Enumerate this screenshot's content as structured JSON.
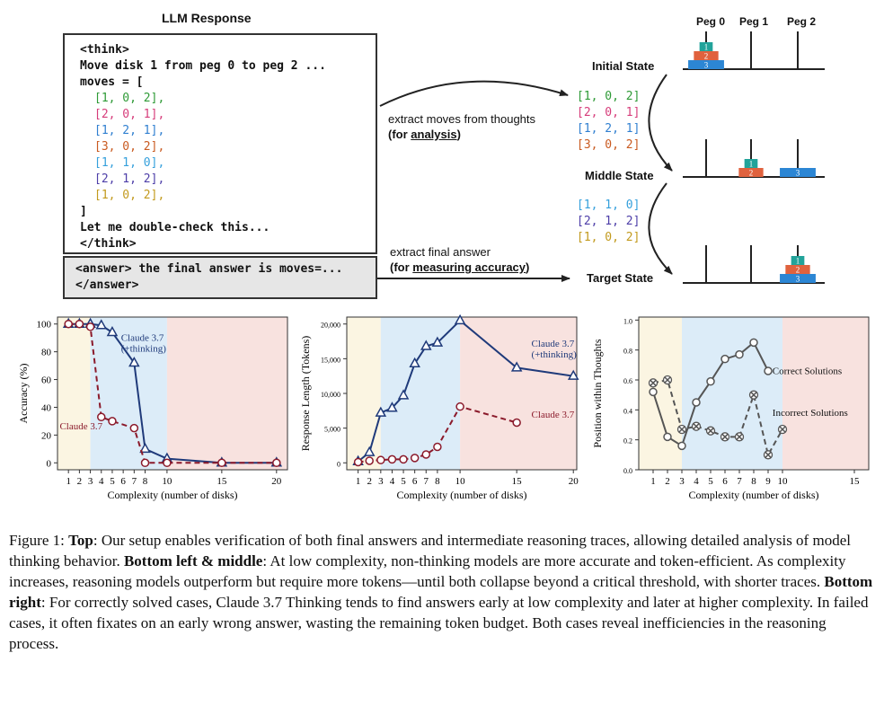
{
  "diagram": {
    "llm_title": "LLM Response",
    "think": {
      "open": "<think>",
      "line1": "Move disk 1 from peg 0 to peg 2 ...",
      "moves_open": "moves = [",
      "moves": [
        {
          "text": "[1, 0, 2],",
          "color": "#2e9a36"
        },
        {
          "text": "[2, 0, 1],",
          "color": "#d63c7a"
        },
        {
          "text": "[1, 2, 1],",
          "color": "#2f7fd0"
        },
        {
          "text": "[3, 0, 2],",
          "color": "#c95a20"
        },
        {
          "text": "[1, 1, 0],",
          "color": "#35a0dc"
        },
        {
          "text": "[2, 1, 2],",
          "color": "#4d3ea8"
        },
        {
          "text": "[1, 0, 2],",
          "color": "#c29a1e"
        }
      ],
      "close_bracket": "]",
      "recheck": "Let me double-check this...",
      "close": "</think>"
    },
    "answer": {
      "line1": "<answer> the final answer is moves=...",
      "line2": "</answer>"
    },
    "extract_moves_label": "extract moves  from thoughts",
    "extract_moves_sub_prefix": "(for ",
    "extract_moves_sub_underlined": "analysis",
    "extract_moves_sub_suffix": ")",
    "extract_final_label": "extract final answer",
    "extract_final_sub_prefix": "(for ",
    "extract_final_sub_underlined": "measuring accuracy",
    "extract_final_sub_suffix": ")",
    "extracted_group1": [
      {
        "text": "[1, 0, 2]",
        "color": "#2e9a36"
      },
      {
        "text": "[2, 0, 1]",
        "color": "#d63c7a"
      },
      {
        "text": "[1, 2, 1]",
        "color": "#2f7fd0"
      },
      {
        "text": "[3, 0, 2]",
        "color": "#c95a20"
      }
    ],
    "extracted_group2": [
      {
        "text": "[1, 1, 0]",
        "color": "#35a0dc"
      },
      {
        "text": "[2, 1, 2]",
        "color": "#4d3ea8"
      },
      {
        "text": "[1, 0, 2]",
        "color": "#c29a1e"
      }
    ],
    "states": [
      "Initial State",
      "Middle State",
      "Target State"
    ],
    "pegs": [
      "Peg 0",
      "Peg 1",
      "Peg 2"
    ],
    "disk_labels": [
      "1",
      "2",
      "3"
    ],
    "disk_colors": {
      "1": "#22a39a",
      "2": "#e0623e",
      "3": "#2c86d4"
    }
  },
  "chart_data": [
    {
      "type": "line",
      "xlabel": "Complexity (number of disks)",
      "ylabel": "Accuracy (%)",
      "xlim": [
        0,
        21
      ],
      "ylim": [
        -5,
        105
      ],
      "xticks": [
        1,
        2,
        3,
        4,
        5,
        6,
        7,
        8,
        10,
        15,
        20
      ],
      "yticks": [
        0,
        20,
        40,
        60,
        80,
        100
      ],
      "regions": [
        {
          "from": 0,
          "to": 3,
          "color": "#fbf5e2"
        },
        {
          "from": 3,
          "to": 10,
          "color": "#dcecf8"
        },
        {
          "from": 10,
          "to": 21,
          "color": "#f8e2df"
        }
      ],
      "series": [
        {
          "name": "Claude 3.7\n(+thinking)",
          "color": "#1f3a7a",
          "marker": "triangle",
          "dashed": false,
          "x": [
            1,
            2,
            3,
            4,
            5,
            7,
            8,
            10,
            15,
            20
          ],
          "y": [
            100,
            100,
            100,
            99,
            94,
            72,
            10,
            3,
            0,
            0
          ]
        },
        {
          "name": "Claude 3.7",
          "color": "#8b1a2b",
          "marker": "circle",
          "dashed": true,
          "x": [
            1,
            2,
            3,
            4,
            5,
            7,
            8,
            10,
            15,
            20
          ],
          "y": [
            100,
            100,
            98,
            33,
            30,
            25,
            0,
            0,
            0,
            0
          ]
        }
      ]
    },
    {
      "type": "line",
      "xlabel": "Complexity (number of disks)",
      "ylabel": "Response Length (Tokens)",
      "xlim": [
        0,
        20.3
      ],
      "ylim": [
        -1000,
        21000
      ],
      "xticks": [
        1,
        2,
        3,
        4,
        5,
        6,
        7,
        8,
        10,
        15,
        20
      ],
      "yticks": [
        0,
        5000,
        10000,
        15000,
        20000
      ],
      "ytick_labels": [
        "0",
        "5,000",
        "10,000",
        "15,000",
        "20,000"
      ],
      "regions": [
        {
          "from": 0,
          "to": 3,
          "color": "#fbf5e2"
        },
        {
          "from": 3,
          "to": 10,
          "color": "#dcecf8"
        },
        {
          "from": 10,
          "to": 20.3,
          "color": "#f8e2df"
        }
      ],
      "series": [
        {
          "name": "Claude 3.7\n(+thinking)",
          "color": "#1f3a7a",
          "marker": "triangle",
          "dashed": false,
          "x": [
            1,
            2,
            3,
            4,
            5,
            6,
            7,
            8,
            10,
            15,
            20
          ],
          "y": [
            200,
            1500,
            7200,
            7900,
            9700,
            14300,
            16800,
            17300,
            20500,
            13700,
            12500
          ]
        },
        {
          "name": "Claude 3.7",
          "color": "#8b1a2b",
          "marker": "circle",
          "dashed": true,
          "x": [
            1,
            2,
            3,
            4,
            5,
            6,
            7,
            8,
            10,
            15
          ],
          "y": [
            100,
            300,
            400,
            500,
            500,
            700,
            1200,
            2300,
            8100,
            5800
          ]
        }
      ]
    },
    {
      "type": "line",
      "xlabel": "Complexity (number of disks)",
      "ylabel": "Position within Thoughts",
      "xlim": [
        0,
        16
      ],
      "ylim": [
        0,
        1.02
      ],
      "xticks": [
        1,
        2,
        3,
        4,
        5,
        6,
        7,
        8,
        9,
        10,
        15
      ],
      "yticks": [
        0.0,
        0.2,
        0.4,
        0.6,
        0.8,
        1.0
      ],
      "ytick_labels": [
        "0.0",
        "0.2",
        "0.4",
        "0.6",
        "0.8",
        "1.0"
      ],
      "regions": [
        {
          "from": 0,
          "to": 3,
          "color": "#fbf5e2"
        },
        {
          "from": 3,
          "to": 10,
          "color": "#dcecf8"
        },
        {
          "from": 10,
          "to": 16,
          "color": "#f8e2df"
        }
      ],
      "series": [
        {
          "name": "Correct Solutions",
          "color": "#555555",
          "marker": "circle",
          "dashed": false,
          "x": [
            1,
            2,
            3,
            4,
            5,
            6,
            7,
            8,
            9
          ],
          "y": [
            0.52,
            0.22,
            0.16,
            0.45,
            0.59,
            0.74,
            0.77,
            0.85,
            0.66
          ]
        },
        {
          "name": "Incorrect Solutions",
          "color": "#555555",
          "marker": "x",
          "dashed": true,
          "x": [
            1,
            2,
            3,
            4,
            5,
            6,
            7,
            8,
            9,
            10
          ],
          "y": [
            0.58,
            0.6,
            0.27,
            0.29,
            0.26,
            0.22,
            0.22,
            0.5,
            0.1,
            0.27
          ]
        }
      ]
    }
  ],
  "caption": {
    "fig": "Figure 1: ",
    "top_b": "Top",
    "top_t": ": Our setup enables verification of both final answers and intermediate reasoning traces, allowing detailed analysis of model thinking behavior. ",
    "lm_b": "Bottom left & middle",
    "lm_t": ": At low complexity, non-thinking models are more accurate and token-efficient. As complexity increases, reasoning models outperform but require more tokens—until both collapse beyond a critical threshold, with shorter traces. ",
    "r_b": "Bottom right",
    "r_t": ": For correctly solved cases, Claude 3.7 Thinking tends to find answers early at low complexity and later at higher complexity. In failed cases, it often fixates on an early wrong answer, wasting the remaining token budget. Both cases reveal inefficiencies in the reasoning process."
  }
}
